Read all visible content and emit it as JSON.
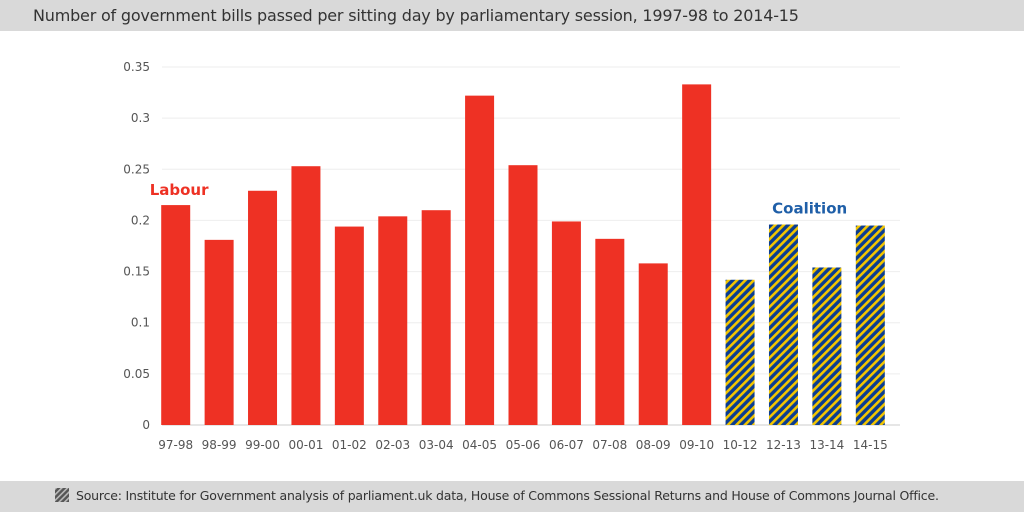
{
  "title": "Number of government bills passed per sitting day by parliamentary session, 1997-98 to 2014-15",
  "footer": {
    "source": "Source: Institute for Government analysis of parliament.uk data, House of Commons Sessional Returns and House of Commons Journal Office.",
    "icon": "hatched-square-icon"
  },
  "colors": {
    "labour": "#ee3124",
    "coalition_fill": "#0b3d91",
    "coalition_stripe": "#f2c500",
    "coalition_label": "#1f5fa8"
  },
  "chart_data": {
    "type": "bar",
    "title": "Number of government bills passed per sitting day by parliamentary session, 1997-98 to 2014-15",
    "xlabel": "",
    "ylabel": "",
    "ylim": [
      0,
      0.35
    ],
    "yticks": [
      "0",
      "0.05",
      "0.1",
      "0.15",
      "0.2",
      "0.25",
      "0.3",
      "0.35"
    ],
    "grid": true,
    "categories": [
      "97-98",
      "98-99",
      "99-00",
      "00-01",
      "01-02",
      "02-03",
      "03-04",
      "04-05",
      "05-06",
      "06-07",
      "07-08",
      "08-09",
      "09-10",
      "10-12",
      "12-13",
      "13-14",
      "14-15"
    ],
    "values": [
      0.215,
      0.181,
      0.229,
      0.253,
      0.194,
      0.204,
      0.21,
      0.322,
      0.254,
      0.199,
      0.182,
      0.158,
      0.333,
      0.142,
      0.196,
      0.154,
      0.195
    ],
    "groups": [
      {
        "label": "Labour",
        "from": "97-98",
        "to": "09-10",
        "style": "solid"
      },
      {
        "label": "Coalition",
        "from": "10-12",
        "to": "14-15",
        "style": "hatched"
      }
    ]
  }
}
